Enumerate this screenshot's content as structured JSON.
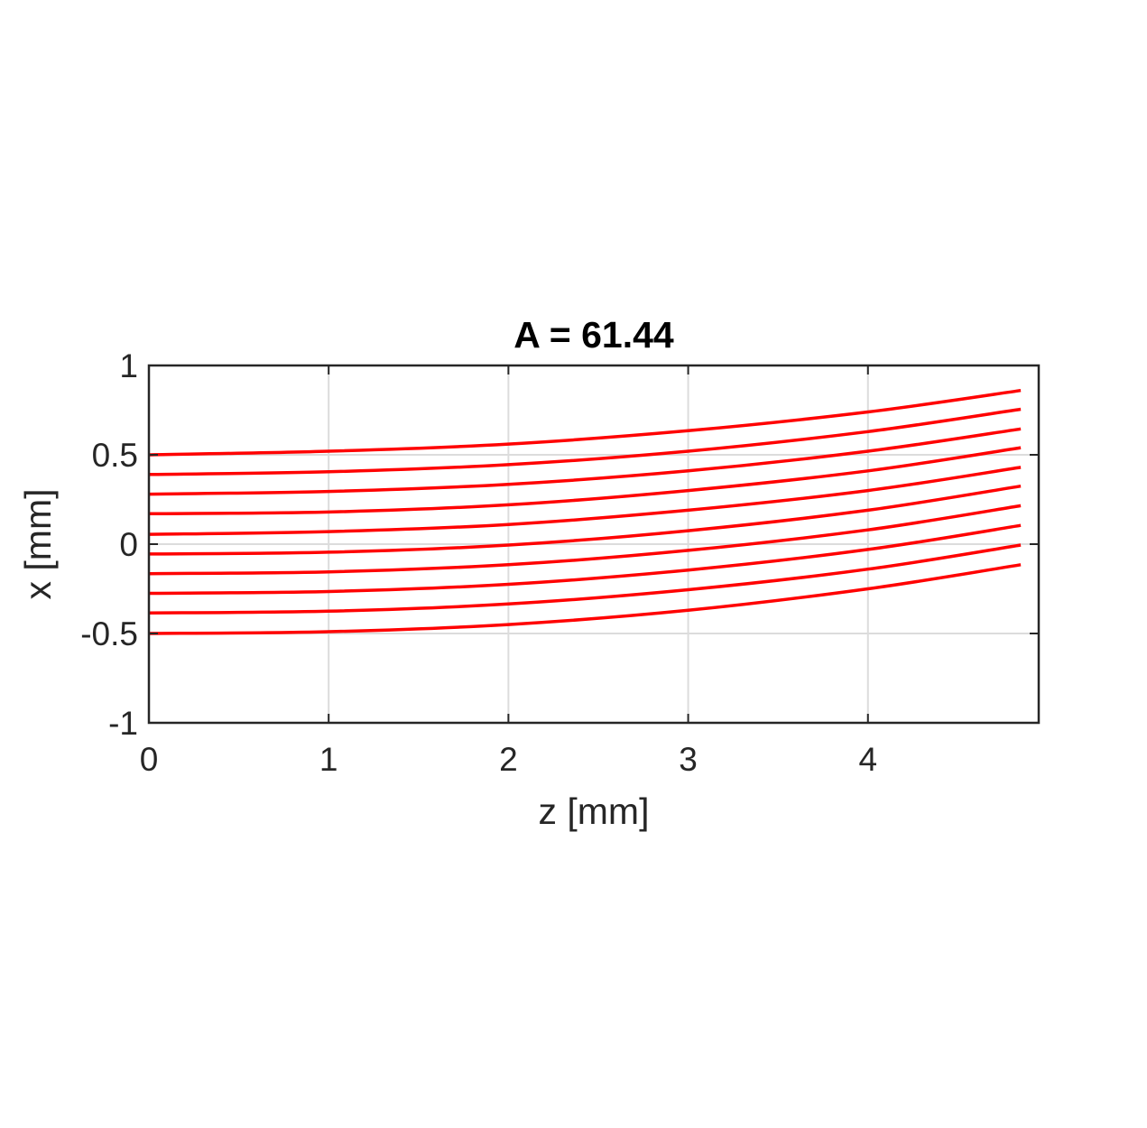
{
  "chart_data": {
    "type": "line",
    "title": "A = 61.44",
    "xlabel": "z [mm]",
    "ylabel": "x [mm]",
    "xlim": [
      0,
      4.95
    ],
    "ylim": [
      -1,
      1
    ],
    "xticks": [
      0,
      1,
      2,
      3,
      4
    ],
    "xtick_labels": [
      "0",
      "1",
      "2",
      "3",
      "4"
    ],
    "yticks": [
      -1,
      -0.5,
      0,
      0.5,
      1
    ],
    "ytick_labels": [
      "-1",
      "-0.5",
      "0",
      "0.5",
      "1"
    ],
    "grid": true,
    "line_color": "#ff0000",
    "x": [
      0,
      1,
      2,
      3,
      4,
      4.85
    ],
    "series": [
      {
        "values": [
          0.5,
          0.52,
          0.56,
          0.635,
          0.74,
          0.86
        ]
      },
      {
        "values": [
          0.39,
          0.405,
          0.445,
          0.52,
          0.63,
          0.755
        ]
      },
      {
        "values": [
          0.28,
          0.295,
          0.335,
          0.41,
          0.52,
          0.645
        ]
      },
      {
        "values": [
          0.17,
          0.18,
          0.22,
          0.3,
          0.41,
          0.54
        ]
      },
      {
        "values": [
          0.055,
          0.07,
          0.11,
          0.19,
          0.3,
          0.43
        ]
      },
      {
        "values": [
          -0.055,
          -0.045,
          -0.005,
          0.075,
          0.19,
          0.325
        ]
      },
      {
        "values": [
          -0.165,
          -0.155,
          -0.115,
          -0.035,
          0.08,
          0.215
        ]
      },
      {
        "values": [
          -0.275,
          -0.265,
          -0.225,
          -0.145,
          -0.03,
          0.105
        ]
      },
      {
        "values": [
          -0.385,
          -0.375,
          -0.335,
          -0.255,
          -0.14,
          -0.005
        ]
      },
      {
        "values": [
          -0.5,
          -0.49,
          -0.45,
          -0.37,
          -0.25,
          -0.115
        ]
      }
    ]
  }
}
